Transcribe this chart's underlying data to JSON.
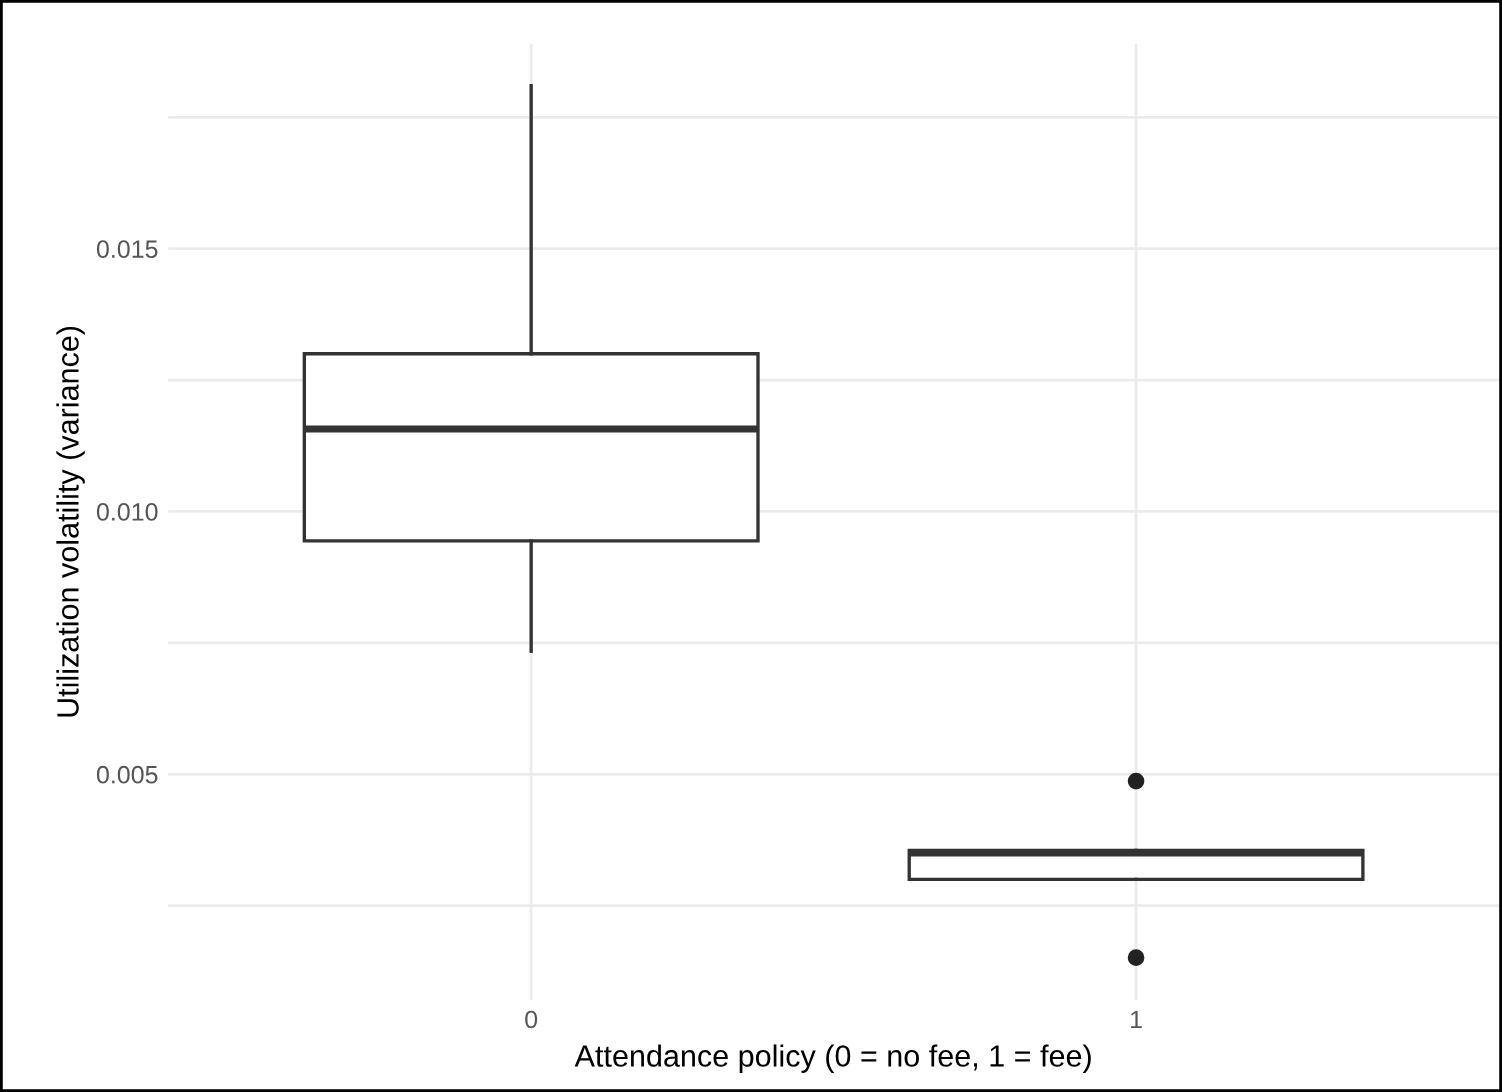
{
  "chart_data": {
    "type": "box",
    "xlabel": "Attendance policy (0 = no fee, 1 = fee)",
    "ylabel": "Utilization volatility (variance)",
    "categories": [
      "0",
      "1"
    ],
    "boxes": [
      {
        "low": 0.00734,
        "q1": 0.00944,
        "median": 0.01157,
        "q3": 0.013,
        "high": 0.0181
      },
      {
        "low": 0.003,
        "q1": 0.003,
        "median": 0.0035,
        "q3": 0.00355,
        "high": 0.00355,
        "outliers": [
          0.00487,
          0.00151
        ]
      }
    ],
    "ylim": [
      0.0007,
      0.0189
    ],
    "yticks": [
      {
        "value": 0.0025,
        "label": null
      },
      0.005,
      {
        "value": 0.0075,
        "label": null
      },
      {
        "value": 0.01,
        "label": "0.010"
      },
      {
        "value": 0.0125,
        "label": null
      },
      0.015,
      {
        "value": 0.0175,
        "label": null
      }
    ],
    "grid": true
  }
}
